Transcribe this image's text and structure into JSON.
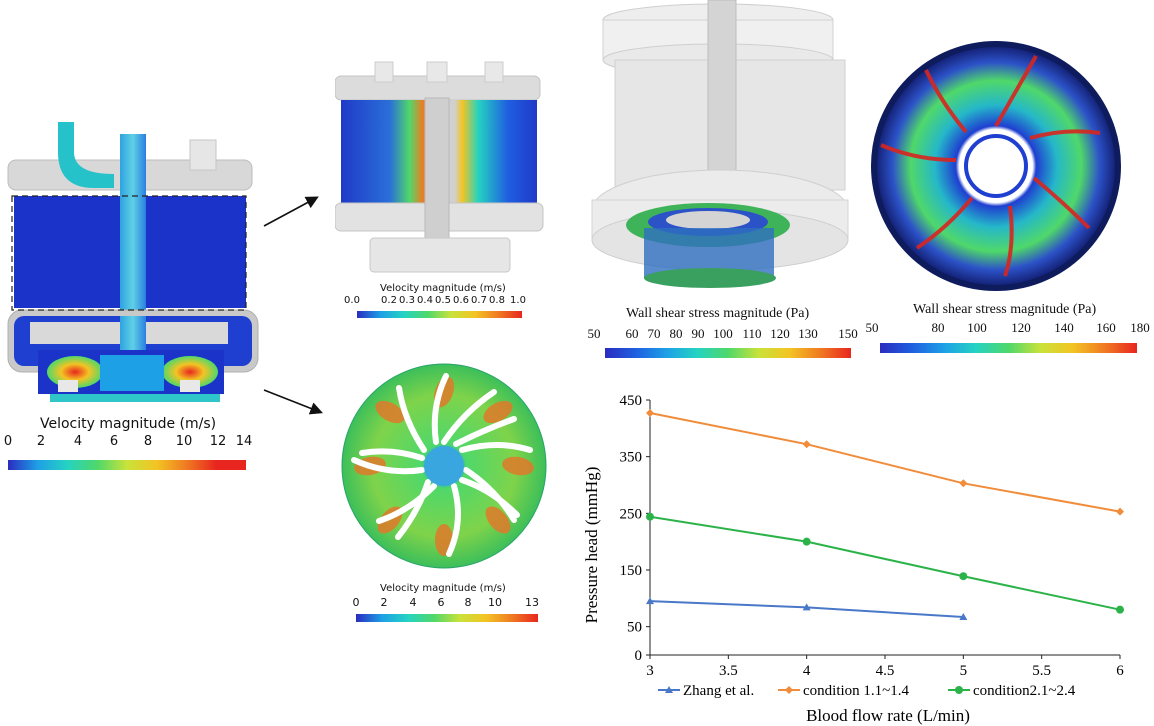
{
  "colorbars": {
    "pump_cross_section": {
      "title": "Velocity magnitude (m/s)",
      "ticks": [
        "0",
        "2",
        "4",
        "6",
        "8",
        "10",
        "12",
        "14"
      ]
    },
    "zoom_section": {
      "title": "Velocity magnitude (m/s)",
      "ticks": [
        "0.0",
        "0.2",
        "0.3",
        "0.4",
        "0.5",
        "0.6",
        "0.7",
        "0.8",
        "1.0"
      ]
    },
    "impeller_plane": {
      "title": "Velocity magnitude (m/s)",
      "ticks": [
        "0",
        "2",
        "4",
        "6",
        "8",
        "10",
        "13"
      ]
    },
    "wss_3d": {
      "title": "Wall shear stress magnitude (Pa)",
      "ticks": [
        "50",
        "60",
        "70",
        "80",
        "90",
        "100",
        "110",
        "120",
        "130",
        "150"
      ]
    },
    "wss_top": {
      "title": "Wall shear stress magnitude (Pa)",
      "ticks": [
        "50",
        "80",
        "100",
        "120",
        "140",
        "160",
        "180"
      ]
    }
  },
  "colors": {
    "jet": [
      "#2a2cc0",
      "#1f5fe0",
      "#1ea0e6",
      "#25d3c2",
      "#4fd86a",
      "#c9e23a",
      "#f3c423",
      "#f07a22",
      "#e8261f"
    ],
    "zhang": "#4a78c9",
    "cond1": "#f08c3a",
    "cond2": "#2bb34a"
  },
  "chart_data": {
    "type": "line",
    "xlabel": "Blood flow rate (L/min)",
    "ylabel": "Pressure head (mmHg)",
    "xlim": [
      3,
      6
    ],
    "ylim": [
      0,
      450
    ],
    "x_ticks": [
      "3",
      "3.5",
      "4",
      "4.5",
      "5",
      "5.5",
      "6"
    ],
    "y_ticks": [
      "0",
      "50",
      "150",
      "250",
      "350",
      "450"
    ],
    "grid": false,
    "legend_position": "bottom",
    "series": [
      {
        "name": "Zhang et al.",
        "marker": "triangle",
        "x": [
          3,
          4,
          5
        ],
        "values": [
          95,
          84,
          67
        ]
      },
      {
        "name": "condition 1.1~1.4",
        "marker": "diamond",
        "x": [
          3,
          4,
          5,
          6
        ],
        "values": [
          427,
          372,
          303,
          253
        ]
      },
      {
        "name": "condition2.1~2.4",
        "marker": "circle",
        "x": [
          3,
          4,
          5,
          6
        ],
        "values": [
          244,
          200,
          139,
          80
        ]
      }
    ]
  }
}
